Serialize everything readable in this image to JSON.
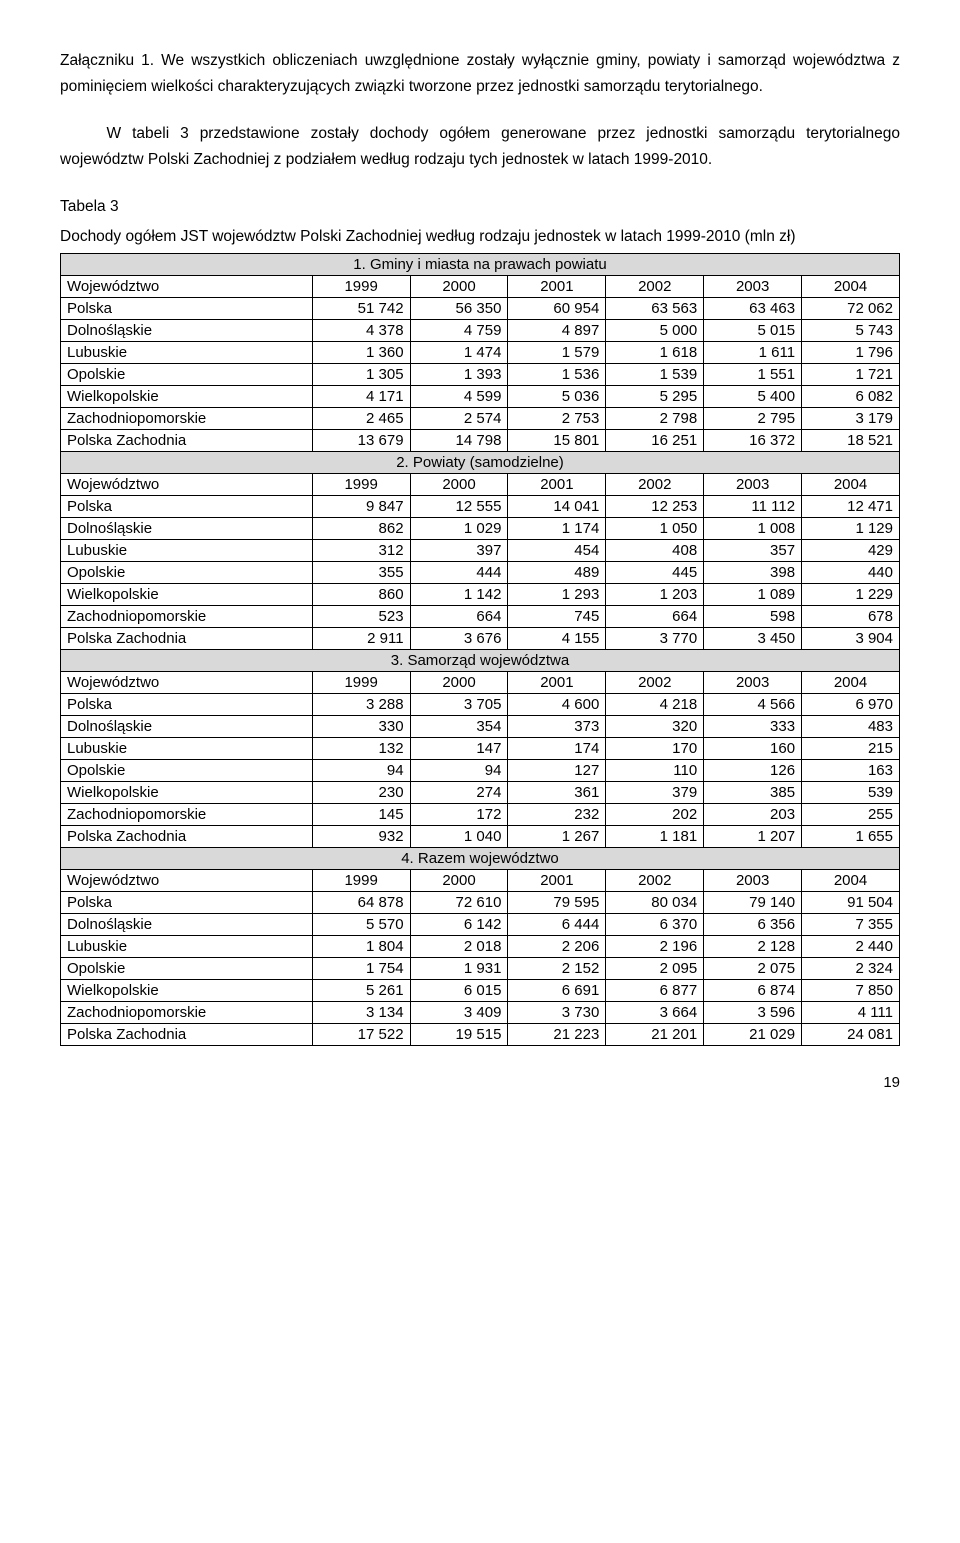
{
  "intro": {
    "p1": "Załączniku 1. We wszystkich obliczeniach uwzględnione zostały wyłącznie gminy, powiaty i samorząd województwa z pominięciem wielkości charakteryzujących związki tworzone przez jednostki samorządu terytorialnego.",
    "p2": "W tabeli 3 przedstawione zostały dochody ogółem generowane przez jednostki samorządu terytorialnego województw Polski Zachodniej z podziałem według rodzaju tych jednostek w latach 1999-2010."
  },
  "caption": {
    "line1": "Tabela 3",
    "line2": "Dochody ogółem JST województw Polski Zachodniej według rodzaju jednostek w latach 1999-2010 (mln zł)"
  },
  "table": {
    "col_header_label": "Województwo",
    "years": [
      "1999",
      "2000",
      "2001",
      "2002",
      "2003",
      "2004"
    ],
    "row_labels": [
      "Polska",
      "Dolnośląskie",
      "Lubuskie",
      "Opolskie",
      "Wielkopolskie",
      "Zachodniopomorskie",
      "Polska Zachodnia"
    ],
    "sections": [
      {
        "title": "1. Gminy i miasta na prawach powiatu",
        "rows": [
          [
            "51 742",
            "56 350",
            "60 954",
            "63 563",
            "63 463",
            "72 062"
          ],
          [
            "4 378",
            "4 759",
            "4 897",
            "5 000",
            "5 015",
            "5 743"
          ],
          [
            "1 360",
            "1 474",
            "1 579",
            "1 618",
            "1 611",
            "1 796"
          ],
          [
            "1 305",
            "1 393",
            "1 536",
            "1 539",
            "1 551",
            "1 721"
          ],
          [
            "4 171",
            "4 599",
            "5 036",
            "5 295",
            "5 400",
            "6 082"
          ],
          [
            "2 465",
            "2 574",
            "2 753",
            "2 798",
            "2 795",
            "3 179"
          ],
          [
            "13 679",
            "14 798",
            "15 801",
            "16 251",
            "16 372",
            "18 521"
          ]
        ]
      },
      {
        "title": "2. Powiaty (samodzielne)",
        "rows": [
          [
            "9 847",
            "12 555",
            "14 041",
            "12 253",
            "11 112",
            "12 471"
          ],
          [
            "862",
            "1 029",
            "1 174",
            "1 050",
            "1 008",
            "1 129"
          ],
          [
            "312",
            "397",
            "454",
            "408",
            "357",
            "429"
          ],
          [
            "355",
            "444",
            "489",
            "445",
            "398",
            "440"
          ],
          [
            "860",
            "1 142",
            "1 293",
            "1 203",
            "1 089",
            "1 229"
          ],
          [
            "523",
            "664",
            "745",
            "664",
            "598",
            "678"
          ],
          [
            "2 911",
            "3 676",
            "4 155",
            "3 770",
            "3 450",
            "3 904"
          ]
        ]
      },
      {
        "title": "3. Samorząd województwa",
        "rows": [
          [
            "3 288",
            "3 705",
            "4 600",
            "4 218",
            "4 566",
            "6 970"
          ],
          [
            "330",
            "354",
            "373",
            "320",
            "333",
            "483"
          ],
          [
            "132",
            "147",
            "174",
            "170",
            "160",
            "215"
          ],
          [
            "94",
            "94",
            "127",
            "110",
            "126",
            "163"
          ],
          [
            "230",
            "274",
            "361",
            "379",
            "385",
            "539"
          ],
          [
            "145",
            "172",
            "232",
            "202",
            "203",
            "255"
          ],
          [
            "932",
            "1 040",
            "1 267",
            "1 181",
            "1 207",
            "1 655"
          ]
        ]
      },
      {
        "title": "4. Razem województwo",
        "rows": [
          [
            "64 878",
            "72 610",
            "79 595",
            "80 034",
            "79 140",
            "91 504"
          ],
          [
            "5 570",
            "6 142",
            "6 444",
            "6 370",
            "6 356",
            "7 355"
          ],
          [
            "1 804",
            "2 018",
            "2 206",
            "2 196",
            "2 128",
            "2 440"
          ],
          [
            "1 754",
            "1 931",
            "2 152",
            "2 095",
            "2 075",
            "2 324"
          ],
          [
            "5 261",
            "6 015",
            "6 691",
            "6 877",
            "6 874",
            "7 850"
          ],
          [
            "3 134",
            "3 409",
            "3 730",
            "3 664",
            "3 596",
            "4 111"
          ],
          [
            "17 522",
            "19 515",
            "21 223",
            "21 201",
            "21 029",
            "24 081"
          ]
        ]
      }
    ]
  },
  "page_number": "19"
}
